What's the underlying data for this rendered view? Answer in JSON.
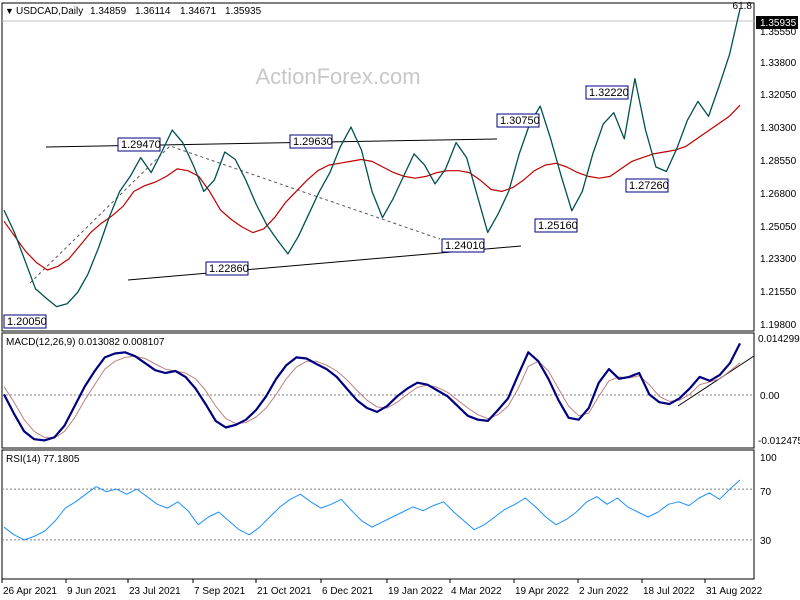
{
  "chart_data": [
    {
      "type": "line",
      "panel": "price",
      "title": "USDCAD,Daily",
      "ohlc": {
        "open": "1.34859",
        "high": "1.36114",
        "low": "1.34671",
        "close": "1.35935"
      },
      "last_price_label": "1.35935",
      "fib_label": "61.8",
      "watermark": "ActionForex.com",
      "ylim": [
        1.188,
        1.362
      ],
      "y_ticks": [
        "1.35550",
        "1.33800",
        "1.32050",
        "1.30300",
        "1.28550",
        "1.26800",
        "1.25050",
        "1.23300",
        "1.21550",
        "1.19800"
      ],
      "annotations": [
        "1.20050",
        "1.29470",
        "1.22860",
        "1.29630",
        "1.24010",
        "1.30750",
        "1.25160",
        "1.32220",
        "1.27260"
      ],
      "x_ticks": [
        "26 Apr 2021",
        "9 Jun 2021",
        "23 Jul 2021",
        "7 Sep 2021",
        "21 Oct 2021",
        "6 Dec 2021",
        "19 Jan 2022",
        "4 Mar 2022",
        "19 Apr 2022",
        "2 Jun 2022",
        "18 Jul 2022",
        "31 Aug 2022"
      ],
      "series": [
        {
          "values": [
            1.252,
            1.24,
            1.225,
            1.21,
            1.205,
            1.2005,
            1.202,
            1.208,
            1.218,
            1.232,
            1.248,
            1.262,
            1.27,
            1.28,
            1.272,
            1.283,
            1.2947,
            1.288,
            1.276,
            1.262,
            1.268,
            1.283,
            1.279,
            1.268,
            1.255,
            1.244,
            1.236,
            1.2286,
            1.238,
            1.25,
            1.262,
            1.272,
            1.286,
            1.2963,
            1.284,
            1.262,
            1.248,
            1.258,
            1.27,
            1.282,
            1.276,
            1.266,
            1.274,
            1.288,
            1.28,
            1.26,
            1.2401,
            1.25,
            1.262,
            1.282,
            1.298,
            1.3075,
            1.29,
            1.27,
            1.2516,
            1.262,
            1.282,
            1.298,
            1.304,
            1.29,
            1.3222,
            1.295,
            1.275,
            1.2726,
            1.285,
            1.3,
            1.31,
            1.302,
            1.318,
            1.335,
            1.35935
          ]
        },
        {
          "values": [
            1.246,
            1.238,
            1.23,
            1.224,
            1.22,
            1.222,
            1.226,
            1.233,
            1.24,
            1.245,
            1.249,
            1.254,
            1.262,
            1.265,
            1.267,
            1.27,
            1.274,
            1.273,
            1.27,
            1.262,
            1.252,
            1.247,
            1.243,
            1.24,
            1.242,
            1.248,
            1.256,
            1.262,
            1.268,
            1.273,
            1.276,
            1.277,
            1.278,
            1.279,
            1.278,
            1.275,
            1.272,
            1.27,
            1.269,
            1.27,
            1.272,
            1.273,
            1.273,
            1.272,
            1.268,
            1.263,
            1.262,
            1.264,
            1.268,
            1.273,
            1.276,
            1.277,
            1.275,
            1.272,
            1.27,
            1.269,
            1.27,
            1.274,
            1.278,
            1.28,
            1.282,
            1.283,
            1.284,
            1.286,
            1.29,
            1.294,
            1.298,
            1.302,
            1.308
          ]
        }
      ],
      "colors": {
        "price": "#005050",
        "ema": "#c00000",
        "trend": "#000000"
      }
    },
    {
      "type": "line",
      "panel": "macd",
      "title": "MACD(12,26,9) 0.013082 0.008107",
      "y_ticks": [
        "0.014299",
        "0.00",
        "-0.012475"
      ],
      "ylim": [
        -0.0135,
        0.0155
      ],
      "series": [
        {
          "values": [
            0.0,
            -0.005,
            -0.0095,
            -0.0115,
            -0.0118,
            -0.011,
            -0.008,
            -0.003,
            0.002,
            0.006,
            0.0095,
            0.0105,
            0.0108,
            0.0098,
            0.008,
            0.0062,
            0.0055,
            0.006,
            0.0045,
            0.0015,
            -0.0025,
            -0.0068,
            -0.0085,
            -0.0078,
            -0.0065,
            -0.004,
            -0.0005,
            0.004,
            0.0075,
            0.0095,
            0.0092,
            0.0078,
            0.0065,
            0.0045,
            0.0015,
            -0.0015,
            -0.0035,
            -0.0045,
            -0.003,
            -0.0005,
            0.0015,
            0.003,
            0.0025,
            0.001,
            -0.0005,
            -0.003,
            -0.0055,
            -0.0065,
            -0.0068,
            -0.004,
            -0.001,
            0.005,
            0.0108,
            0.0085,
            0.004,
            -0.0015,
            -0.006,
            -0.0065,
            -0.0035,
            0.003,
            0.0065,
            0.004,
            0.0045,
            0.0055,
            0.0,
            -0.002,
            -0.0025,
            -0.001,
            0.0015,
            0.0045,
            0.0035,
            0.005,
            0.008,
            0.013082
          ]
        },
        {
          "values": [
            0.002,
            -0.002,
            -0.0065,
            -0.0095,
            -0.011,
            -0.0112,
            -0.0095,
            -0.006,
            -0.0015,
            0.0025,
            0.0065,
            0.0085,
            0.0095,
            0.0098,
            0.0092,
            0.0078,
            0.0065,
            0.006,
            0.0055,
            0.004,
            0.001,
            -0.003,
            -0.0062,
            -0.0075,
            -0.0072,
            -0.0058,
            -0.0035,
            0.0,
            0.004,
            0.007,
            0.0085,
            0.0085,
            0.0075,
            0.006,
            0.0038,
            0.001,
            -0.0015,
            -0.0032,
            -0.0035,
            -0.002,
            0.0,
            0.0018,
            0.0024,
            0.0018,
            0.0005,
            -0.0015,
            -0.0035,
            -0.0052,
            -0.0062,
            -0.0052,
            -0.003,
            0.0015,
            0.0072,
            0.0085,
            0.006,
            0.0015,
            -0.003,
            -0.0055,
            -0.0048,
            -0.0005,
            0.0035,
            0.0045,
            0.0042,
            0.0048,
            0.0025,
            -0.0005,
            -0.0018,
            -0.0015,
            0.0,
            0.0025,
            0.0032,
            0.004,
            0.006,
            0.008107
          ]
        }
      ],
      "colors": {
        "macd": "#000080",
        "signal": "#c08080",
        "trend": "#000000"
      }
    },
    {
      "type": "line",
      "panel": "rsi",
      "title": "RSI(14) 77.1805",
      "y_ticks": [
        "100",
        "70",
        "30"
      ],
      "ylim": [
        0,
        100
      ],
      "levels": [
        70,
        30
      ],
      "series": [
        {
          "values": [
            40,
            34,
            30,
            33,
            37,
            45,
            55,
            60,
            66,
            72,
            68,
            70,
            66,
            70,
            64,
            58,
            55,
            60,
            53,
            42,
            48,
            52,
            45,
            38,
            34,
            40,
            48,
            56,
            62,
            66,
            60,
            55,
            58,
            62,
            53,
            45,
            40,
            44,
            48,
            52,
            56,
            53,
            57,
            60,
            52,
            45,
            38,
            42,
            48,
            54,
            58,
            63,
            56,
            48,
            42,
            46,
            52,
            60,
            64,
            58,
            63,
            56,
            52,
            48,
            52,
            58,
            60,
            57,
            63,
            67,
            62,
            70,
            77.1805
          ]
        }
      ],
      "colors": {
        "rsi": "#1e90ff",
        "level": "#7f7f7f"
      }
    }
  ]
}
